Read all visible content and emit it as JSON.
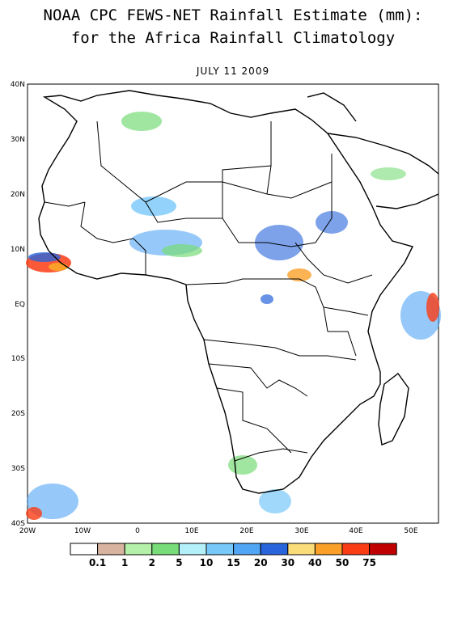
{
  "title": {
    "line1": "NOAA CPC FEWS-NET Rainfall Estimate (mm):",
    "line2": "for the Africa Rainfall Climatology"
  },
  "date": "JULY 11 2009",
  "axes": {
    "lat_ticks": [
      "40N",
      "30N",
      "20N",
      "10N",
      "EQ",
      "10S",
      "20S",
      "30S",
      "40S"
    ],
    "lon_ticks": [
      "20W",
      "10W",
      "0",
      "10E",
      "20E",
      "30E",
      "40E",
      "50E"
    ],
    "lat_range": [
      -40,
      40
    ],
    "lon_range": [
      -20,
      55
    ]
  },
  "legend": {
    "labels": [
      "0.1",
      "1",
      "2",
      "5",
      "10",
      "15",
      "20",
      "30",
      "40",
      "50",
      "75"
    ],
    "colors": [
      "#ffffff",
      "#d8b4a0",
      "#b4f0a8",
      "#78dc78",
      "#b4f0fa",
      "#78c8fa",
      "#50a5f5",
      "#2864dc",
      "#fadc78",
      "#faa028",
      "#fa3c14",
      "#c00000"
    ]
  }
}
